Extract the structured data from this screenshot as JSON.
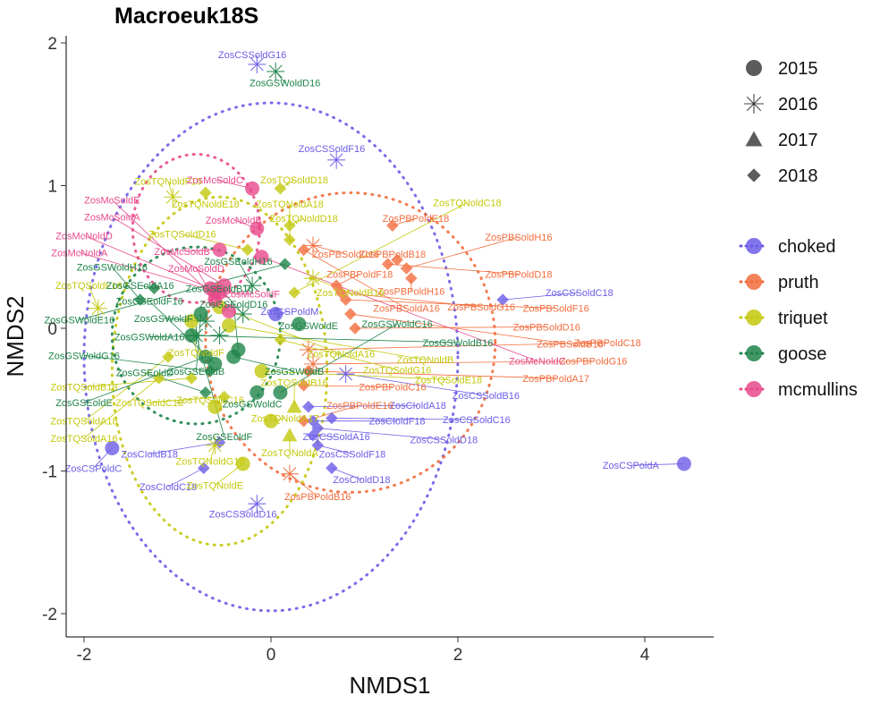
{
  "chart_data": {
    "type": "scatter",
    "title": "Macroeuk18S",
    "xlabel": "NMDS1",
    "ylabel": "NMDS2",
    "xlim": [
      -2.2,
      4.7
    ],
    "ylim": [
      -2.15,
      2.05
    ],
    "xticks": [
      -2,
      0,
      2,
      4
    ],
    "yticks": [
      -2,
      -1,
      0,
      1,
      2
    ],
    "grid": false,
    "legend_position": "right",
    "shape_legend": [
      {
        "label": "2015",
        "shape": "circle"
      },
      {
        "label": "2016",
        "shape": "asterisk"
      },
      {
        "label": "2017",
        "shape": "triangle"
      },
      {
        "label": "2018",
        "shape": "diamond"
      }
    ],
    "color_legend": [
      {
        "label": "choked",
        "color": "#6C5CE7"
      },
      {
        "label": "pruth",
        "color": "#F26D3D"
      },
      {
        "label": "triquet",
        "color": "#C3C80C"
      },
      {
        "label": "goose",
        "color": "#1E8449"
      },
      {
        "label": "mcmullins",
        "color": "#E84A8C"
      }
    ],
    "ellipses": [
      {
        "group": "choked",
        "cx": 0.0,
        "cy": -0.2,
        "rx": 2.0,
        "ry": 1.78
      },
      {
        "group": "pruth",
        "cx": 0.85,
        "cy": -0.1,
        "rx": 1.55,
        "ry": 1.05
      },
      {
        "group": "triquet",
        "cx": -0.55,
        "cy": -0.3,
        "rx": 1.15,
        "ry": 1.22
      },
      {
        "group": "goose",
        "cx": -0.8,
        "cy": -0.05,
        "rx": 0.9,
        "ry": 0.62
      },
      {
        "group": "mcmullins",
        "cx": -0.8,
        "cy": 0.7,
        "rx": 0.68,
        "ry": 0.52
      }
    ],
    "series": [
      {
        "name": "choked",
        "points": [
          {
            "x": -1.7,
            "y": -0.84,
            "year": "2015",
            "label": "ZosCSPoldC",
            "lx": -1.9,
            "ly": -0.98
          },
          {
            "x": 4.42,
            "y": -0.95,
            "year": "2015",
            "label": "ZosCSPoldA",
            "lx": 3.85,
            "ly": -0.96
          },
          {
            "x": 0.05,
            "y": 0.1,
            "year": "2015",
            "label": "ZosCSPoldM",
            "lx": 0.2,
            "ly": 0.12
          },
          {
            "x": -0.15,
            "y": 1.85,
            "year": "2016",
            "label": "ZosCSSoldG16",
            "lx": -0.2,
            "ly": 1.92
          },
          {
            "x": 0.7,
            "y": 1.18,
            "year": "2016",
            "label": "ZosCSSoldF16",
            "lx": 0.65,
            "ly": 1.26
          },
          {
            "x": -0.15,
            "y": -1.23,
            "year": "2016",
            "label": "ZosCSSoldD16",
            "lx": -0.3,
            "ly": -1.3
          },
          {
            "x": 0.8,
            "y": -0.32,
            "year": "2016",
            "label": "ZosCSSoldB16",
            "lx": 2.3,
            "ly": -0.47
          },
          {
            "x": 2.48,
            "y": 0.2,
            "year": "2018",
            "label": "ZosCSSoldC18",
            "lx": 3.3,
            "ly": 0.25
          },
          {
            "x": 0.65,
            "y": -0.63,
            "year": "2018",
            "label": "ZosCSSoldC16",
            "lx": 2.2,
            "ly": -0.64
          },
          {
            "x": 0.5,
            "y": -0.82,
            "year": "2018",
            "label": "ZosCSSoldF18",
            "lx": 0.87,
            "ly": -0.88
          },
          {
            "x": 0.65,
            "y": -0.98,
            "year": "2018",
            "label": "ZosCIoldD18",
            "lx": 0.97,
            "ly": -1.06
          },
          {
            "x": -0.72,
            "y": -0.98,
            "year": "2018",
            "label": "ZosCIoldC18",
            "lx": -1.1,
            "ly": -1.11
          },
          {
            "x": 0.4,
            "y": -0.55,
            "year": "2018",
            "label": "ZosCIoldA18",
            "lx": 1.57,
            "ly": -0.54
          },
          {
            "x": 0.45,
            "y": -0.65,
            "year": "2018",
            "label": "ZosCIoldF18",
            "lx": 1.35,
            "ly": -0.65
          },
          {
            "x": 0.45,
            "y": -0.75,
            "year": "2018",
            "label": "ZosCSSoldA16",
            "lx": 0.7,
            "ly": -0.76
          },
          {
            "x": 0.5,
            "y": -0.7,
            "year": "2018",
            "label": "ZosCSSoldD18",
            "lx": 1.85,
            "ly": -0.78
          },
          {
            "x": -0.55,
            "y": -0.8,
            "year": "2018",
            "label": "ZosCIoldB18",
            "lx": -1.3,
            "ly": -0.88
          }
        ]
      },
      {
        "name": "pruth",
        "points": [
          {
            "x": 0.2,
            "y": -1.02,
            "year": "2016",
            "label": "ZosPBPoldB16",
            "lx": 0.5,
            "ly": -1.18
          },
          {
            "x": 0.45,
            "y": 0.58,
            "year": "2016",
            "label": "ZosPBSoldC16",
            "lx": 0.8,
            "ly": 0.52
          },
          {
            "x": 0.4,
            "y": -0.15,
            "year": "2016",
            "label": "ZosPBPoldC18",
            "lx": 3.6,
            "ly": -0.1
          },
          {
            "x": 0.45,
            "y": -0.25,
            "year": "2016",
            "label": "ZosPBPoldG16",
            "lx": 3.45,
            "ly": -0.23
          },
          {
            "x": 1.3,
            "y": 0.72,
            "year": "2018",
            "label": "ZosPBPoldE18",
            "lx": 1.55,
            "ly": 0.77
          },
          {
            "x": 1.35,
            "y": 0.48,
            "year": "2018",
            "label": "ZosPBPoldB18",
            "lx": 1.3,
            "ly": 0.52
          },
          {
            "x": 1.45,
            "y": 0.42,
            "year": "2018",
            "label": "ZosPBSoldH16",
            "lx": 2.65,
            "ly": 0.64
          },
          {
            "x": 1.25,
            "y": 0.45,
            "year": "2018",
            "label": "ZosPBPoldD18",
            "lx": 2.65,
            "ly": 0.38
          },
          {
            "x": 1.5,
            "y": 0.35,
            "year": "2018",
            "label": "ZosPBPoldH16",
            "lx": 1.5,
            "ly": 0.26
          },
          {
            "x": 0.9,
            "y": 0.0,
            "year": "2018",
            "label": "ZosPBSoldD16",
            "lx": 2.95,
            "ly": 0.01
          },
          {
            "x": 0.85,
            "y": 0.1,
            "year": "2018",
            "label": "ZosPBSoldB16",
            "lx": 3.2,
            "ly": -0.11
          },
          {
            "x": 0.8,
            "y": 0.2,
            "year": "2018",
            "label": "ZosPBSoldF16",
            "lx": 3.05,
            "ly": 0.14
          },
          {
            "x": 0.75,
            "y": 0.25,
            "year": "2018",
            "label": "ZosPBSoldG16",
            "lx": 2.25,
            "ly": 0.15
          },
          {
            "x": 0.7,
            "y": 0.3,
            "year": "2018",
            "label": "ZosPBPoldF18",
            "lx": 0.95,
            "ly": 0.38
          },
          {
            "x": 0.35,
            "y": 0.55,
            "year": "2018",
            "label": "ZosPBSoldA16",
            "lx": 1.45,
            "ly": 0.14
          },
          {
            "x": 0.35,
            "y": -0.65,
            "year": "2018",
            "label": "ZosPBPoldE16",
            "lx": 0.95,
            "ly": -0.54
          },
          {
            "x": 0.35,
            "y": -0.4,
            "year": "2018",
            "label": "ZosPBPoldC16",
            "lx": 1.3,
            "ly": -0.41
          },
          {
            "x": 0.4,
            "y": -0.3,
            "year": "2018",
            "label": "ZosPBPoldA17",
            "lx": 3.05,
            "ly": -0.35
          }
        ]
      },
      {
        "name": "triquet",
        "points": [
          {
            "x": -1.85,
            "y": 0.14,
            "year": "2016",
            "label": "ZosTQSoldF16",
            "lx": -1.95,
            "ly": 0.3
          },
          {
            "x": -1.05,
            "y": 0.92,
            "year": "2016",
            "label": "ZosTQNoldF16",
            "lx": -1.1,
            "ly": 1.03
          },
          {
            "x": 0.45,
            "y": 0.35,
            "year": "2016",
            "label": "ZosTQNoldB16",
            "lx": 0.85,
            "ly": 0.25
          },
          {
            "x": -0.6,
            "y": -0.82,
            "year": "2016",
            "label": "ZosTQNoldG16",
            "lx": -0.65,
            "ly": -0.93
          },
          {
            "x": -0.85,
            "y": 0.05,
            "year": "2015",
            "label": "ZosTQNoldF",
            "lx": -0.8,
            "ly": -0.17
          },
          {
            "x": -0.6,
            "y": -0.55,
            "year": "2015",
            "label": "ZosTQSoldC16",
            "lx": -0.65,
            "ly": -0.5
          },
          {
            "x": -0.45,
            "y": 0.02,
            "year": "2015",
            "label": "ZosTQNoldB",
            "lx": 1.65,
            "ly": -0.22
          },
          {
            "x": -0.1,
            "y": -0.3,
            "year": "2015",
            "label": "ZosTQSoldE18",
            "lx": 1.9,
            "ly": -0.36
          },
          {
            "x": -0.3,
            "y": -0.95,
            "year": "2015",
            "label": "ZosTQNoldE",
            "lx": -0.6,
            "ly": -1.1
          },
          {
            "x": 0.0,
            "y": -0.65,
            "year": "2015",
            "label": "ZosTQNoldA17",
            "lx": 0.15,
            "ly": -0.63
          },
          {
            "x": -0.55,
            "y": 0.15,
            "year": "2015",
            "label": "ZosTQNoldA16",
            "lx": 0.75,
            "ly": -0.18
          },
          {
            "x": 0.2,
            "y": -0.75,
            "year": "2017",
            "label": "ZosTQNoldA",
            "lx": 0.2,
            "ly": -0.87
          },
          {
            "x": 0.25,
            "y": -0.55,
            "year": "2017",
            "label": "ZosTQSoldB16",
            "lx": 0.25,
            "ly": -0.38
          },
          {
            "x": -0.85,
            "y": -0.35,
            "year": "2018",
            "label": "ZosTQSoldB18",
            "lx": -2.0,
            "ly": -0.41
          },
          {
            "x": -1.1,
            "y": -0.2,
            "year": "2018",
            "label": "ZosTQSoldA18",
            "lx": -2.0,
            "ly": -0.65
          },
          {
            "x": -1.2,
            "y": -0.35,
            "year": "2018",
            "label": "ZosTQSoldA16",
            "lx": -2.0,
            "ly": -0.77
          },
          {
            "x": -0.7,
            "y": 0.95,
            "year": "2018",
            "label": "ZosTQNoldE18",
            "lx": -0.7,
            "ly": 0.87
          },
          {
            "x": 0.1,
            "y": 0.98,
            "year": "2018",
            "label": "ZosTQSoldD18",
            "lx": 0.25,
            "ly": 1.04
          },
          {
            "x": 0.2,
            "y": 0.72,
            "year": "2018",
            "label": "ZosTQNoldD18",
            "lx": 0.35,
            "ly": 0.77
          },
          {
            "x": 0.2,
            "y": 0.62,
            "year": "2018",
            "label": "ZosTQNoldA18",
            "lx": 0.2,
            "ly": 0.87
          },
          {
            "x": -0.5,
            "y": -0.48,
            "year": "2018",
            "label": "ZosTQSoldC18",
            "lx": -1.3,
            "ly": -0.52
          },
          {
            "x": -0.25,
            "y": 0.55,
            "year": "2018",
            "label": "ZosTQSoldD16",
            "lx": -0.95,
            "ly": 0.66
          },
          {
            "x": 0.1,
            "y": -0.08,
            "year": "2018",
            "label": "ZosTQSoldG16",
            "lx": 1.35,
            "ly": -0.29
          },
          {
            "x": 0.25,
            "y": 0.25,
            "year": "2018",
            "label": "ZosTQNoldC18",
            "lx": 2.1,
            "ly": 0.88
          }
        ]
      },
      {
        "name": "goose",
        "points": [
          {
            "x": 0.05,
            "y": 1.8,
            "year": "2016",
            "label": "ZosGSWoldD16",
            "lx": 0.15,
            "ly": 1.72
          },
          {
            "x": -0.3,
            "y": 0.1,
            "year": "2016",
            "label": "ZosGSEoldB16",
            "lx": -0.55,
            "ly": 0.28
          },
          {
            "x": -0.55,
            "y": -0.05,
            "year": "2016",
            "label": "ZosGSWoldA16",
            "lx": -1.3,
            "ly": -0.06
          },
          {
            "x": -0.7,
            "y": 0.05,
            "year": "2016",
            "label": "ZosGSWoldF",
            "lx": -1.15,
            "ly": 0.07
          },
          {
            "x": -0.8,
            "y": -0.05,
            "year": "2016",
            "label": "ZosGSEoldF",
            "lx": -0.5,
            "ly": -0.76
          },
          {
            "x": -0.2,
            "y": 0.3,
            "year": "2016",
            "label": "ZosGSEoldH16",
            "lx": -0.35,
            "ly": 0.47
          },
          {
            "x": -0.75,
            "y": 0.1,
            "year": "2015",
            "label": "ZosGSEoldB",
            "lx": -0.8,
            "ly": -0.3
          },
          {
            "x": 0.3,
            "y": 0.03,
            "year": "2015",
            "label": "ZosGSWoldE",
            "lx": 0.4,
            "ly": 0.02
          },
          {
            "x": -0.4,
            "y": -0.2,
            "year": "2015",
            "label": "ZosGSWoldB",
            "lx": 0.25,
            "ly": -0.3
          },
          {
            "x": -0.15,
            "y": -0.45,
            "year": "2015",
            "label": "ZosGSWoldC",
            "lx": -0.2,
            "ly": -0.53
          },
          {
            "x": 0.1,
            "y": -0.45,
            "year": "2015",
            "label": "ZosGSWoldC16",
            "lx": 1.35,
            "ly": 0.03
          },
          {
            "x": -0.6,
            "y": -0.25,
            "year": "2015",
            "label": "ZosGSEoldF16",
            "lx": -1.3,
            "ly": 0.19
          },
          {
            "x": -0.7,
            "y": -0.2,
            "year": "2015",
            "label": "ZosGSEoldE",
            "lx": -2.0,
            "ly": -0.52
          },
          {
            "x": -0.85,
            "y": -0.05,
            "year": "2015",
            "label": "ZosGSWoldB16",
            "lx": 2.0,
            "ly": -0.1
          },
          {
            "x": -0.35,
            "y": -0.15,
            "year": "2015",
            "label": "ZosGSEoldD16",
            "lx": -0.4,
            "ly": 0.17
          },
          {
            "x": -0.65,
            "y": -0.3,
            "year": "2018",
            "label": "ZosGSWoldG16",
            "lx": -2.0,
            "ly": -0.19
          },
          {
            "x": -1.4,
            "y": 0.2,
            "year": "2018",
            "label": "ZosGSWoldH16",
            "lx": -1.7,
            "ly": 0.43
          },
          {
            "x": -0.7,
            "y": -0.45,
            "year": "2018",
            "label": "ZosGSEoldD",
            "lx": -1.35,
            "ly": -0.31
          },
          {
            "x": -1.25,
            "y": 0.28,
            "year": "2018",
            "label": "ZosGSEoldA16",
            "lx": -1.4,
            "ly": 0.3
          },
          {
            "x": 0.15,
            "y": 0.45,
            "year": "2018",
            "label": "ZosGSWoldE16",
            "lx": -2.05,
            "ly": 0.06
          }
        ]
      },
      {
        "name": "mcmullins",
        "points": [
          {
            "x": -0.2,
            "y": 0.98,
            "year": "2015",
            "label": "ZosMcSoldC",
            "lx": -0.6,
            "ly": 1.04
          },
          {
            "x": -0.55,
            "y": 0.55,
            "year": "2015",
            "label": "ZosMcSoldB",
            "lx": -0.95,
            "ly": 0.54
          },
          {
            "x": -0.15,
            "y": 0.7,
            "year": "2015",
            "label": "ZosMcNoldB",
            "lx": -0.4,
            "ly": 0.76
          },
          {
            "x": -0.6,
            "y": 0.25,
            "year": "2015",
            "label": "ZosMcSoldF",
            "lx": -0.2,
            "ly": 0.24
          },
          {
            "x": -0.45,
            "y": 0.12,
            "year": "2015",
            "label": "ZosMcSoldE",
            "lx": -1.7,
            "ly": 0.9
          },
          {
            "x": -0.5,
            "y": 0.3,
            "year": "2015",
            "label": "ZosMcSoldA",
            "lx": -1.7,
            "ly": 0.78
          },
          {
            "x": -0.65,
            "y": 0.28,
            "year": "2015",
            "label": "ZosMcNoldD",
            "lx": -2.0,
            "ly": 0.65
          },
          {
            "x": -0.55,
            "y": 0.25,
            "year": "2015",
            "label": "ZosMcNoldA",
            "lx": -2.05,
            "ly": 0.53
          },
          {
            "x": -0.6,
            "y": 0.2,
            "year": "2015",
            "label": "ZosMcSoldD",
            "lx": -0.8,
            "ly": 0.42
          },
          {
            "x": -0.1,
            "y": 0.5,
            "year": "2015",
            "label": "ZosMcNoldC",
            "lx": 2.85,
            "ly": -0.23
          }
        ]
      }
    ]
  }
}
